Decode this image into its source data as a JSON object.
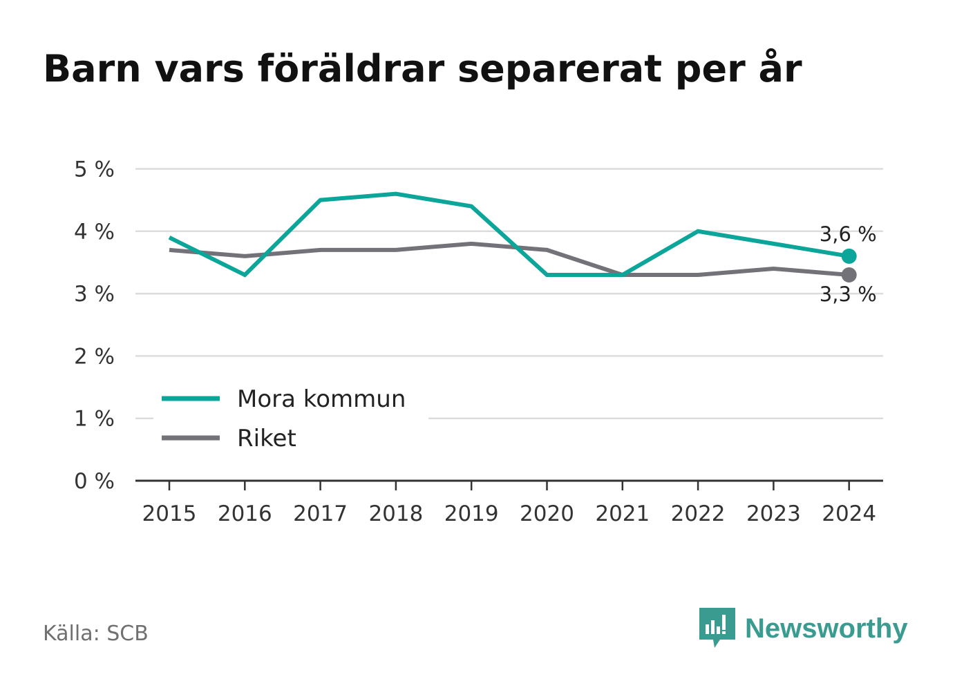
{
  "title": "Barn vars föräldrar separerat per år",
  "source": "Källa: SCB",
  "brand": "Newsworthy",
  "colors": {
    "mora": "#0ca59a",
    "riket": "#737278",
    "brand": "#3a9b91"
  },
  "chart_data": {
    "type": "line",
    "x": [
      "2015",
      "2016",
      "2017",
      "2018",
      "2019",
      "2020",
      "2021",
      "2022",
      "2023",
      "2024"
    ],
    "ylim": [
      0,
      5
    ],
    "yticks": [
      "0 %",
      "1 %",
      "2 %",
      "3 %",
      "4 %",
      "5 %"
    ],
    "grid": true,
    "legend": "bottom-left",
    "series": [
      {
        "name": "Mora kommun",
        "values": [
          3.9,
          3.3,
          4.5,
          4.6,
          4.4,
          3.3,
          3.3,
          4.0,
          3.8,
          3.6
        ],
        "end_label": "3,6 %"
      },
      {
        "name": "Riket",
        "values": [
          3.7,
          3.6,
          3.7,
          3.7,
          3.8,
          3.7,
          3.3,
          3.3,
          3.4,
          3.3
        ],
        "end_label": "3,3 %"
      }
    ]
  }
}
